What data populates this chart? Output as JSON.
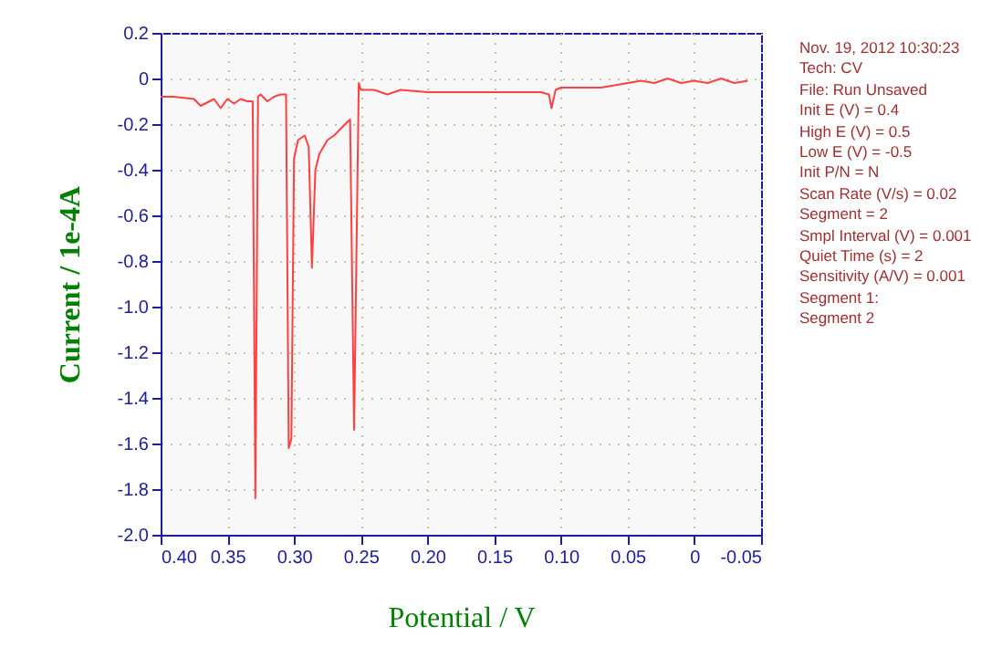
{
  "chart_data": {
    "type": "line",
    "xlabel": "Potential / V",
    "ylabel": "Current / 1e-4A",
    "annotations": [
      "Nov. 19, 2012   10:30:23",
      "Tech: CV",
      "File: Run Unsaved",
      "Init E (V) = 0.4",
      "High E (V) = 0.5",
      "Low E (V) = -0.5",
      "Init P/N = N",
      "Scan Rate (V/s) = 0.02",
      "Segment = 2",
      "Smpl Interval (V) = 0.001",
      "Quiet Time (s) = 2",
      "Sensitivity (A/V) = 0.001",
      "Segment 1:",
      "Segment 2"
    ],
    "series": [
      {
        "color": "#ff4040",
        "x": [
          0.4,
          0.39,
          0.375,
          0.37,
          0.36,
          0.355,
          0.35,
          0.345,
          0.34,
          0.335,
          0.331,
          0.329,
          0.327,
          0.325,
          0.32,
          0.315,
          0.31,
          0.306,
          0.304,
          0.302,
          0.3,
          0.297,
          0.292,
          0.289,
          0.2866,
          0.284,
          0.281,
          0.275,
          0.27,
          0.265,
          0.26,
          0.258,
          0.255,
          0.2515,
          0.25,
          0.245,
          0.24,
          0.23,
          0.22,
          0.2,
          0.18,
          0.15,
          0.13,
          0.115,
          0.109,
          0.107,
          0.104,
          0.1,
          0.09,
          0.07,
          0.06,
          0.05,
          0.04,
          0.03,
          0.02,
          0.01,
          0,
          -0.01,
          -0.02,
          -0.03,
          -0.04
        ],
        "values": [
          -0.08,
          -0.08,
          -0.09,
          -0.12,
          -0.09,
          -0.13,
          -0.09,
          -0.11,
          -0.09,
          -0.1,
          -0.1,
          -1.84,
          -0.08,
          -0.07,
          -0.1,
          -0.08,
          -0.07,
          -0.07,
          -1.62,
          -1.58,
          -0.35,
          -0.27,
          -0.25,
          -0.3,
          -0.83,
          -0.4,
          -0.33,
          -0.27,
          -0.25,
          -0.22,
          -0.19,
          -0.18,
          -1.54,
          -0.02,
          -0.05,
          -0.05,
          -0.05,
          -0.07,
          -0.05,
          -0.06,
          -0.06,
          -0.06,
          -0.06,
          -0.06,
          -0.07,
          -0.13,
          -0.05,
          -0.04,
          -0.04,
          -0.04,
          -0.03,
          -0.02,
          -0.01,
          -0.02,
          0,
          -0.02,
          -0.01,
          -0.02,
          0,
          -0.02,
          -0.01
        ]
      }
    ],
    "xlim": [
      0.4,
      -0.05
    ],
    "xticks": [
      {
        "value": 0.4,
        "label": "0.40"
      },
      0.35,
      {
        "value": 0.3,
        "label": "0.30"
      },
      0.25,
      {
        "value": 0.2,
        "label": "0.20"
      },
      0.15,
      {
        "value": 0.1,
        "label": "0.10"
      },
      0.05,
      0,
      -0.05
    ],
    "ylim": [
      -2.0,
      0.2
    ],
    "yticks": [
      0.2,
      0,
      -0.2,
      -0.4,
      -0.6,
      -0.8,
      {
        "value": -1,
        "label": "-1.0"
      },
      -1.2,
      -1.4,
      -1.6,
      -1.8,
      {
        "value": -2,
        "label": "-2.0"
      }
    ],
    "grid": true,
    "marker": "none",
    "line_style": "solid"
  }
}
